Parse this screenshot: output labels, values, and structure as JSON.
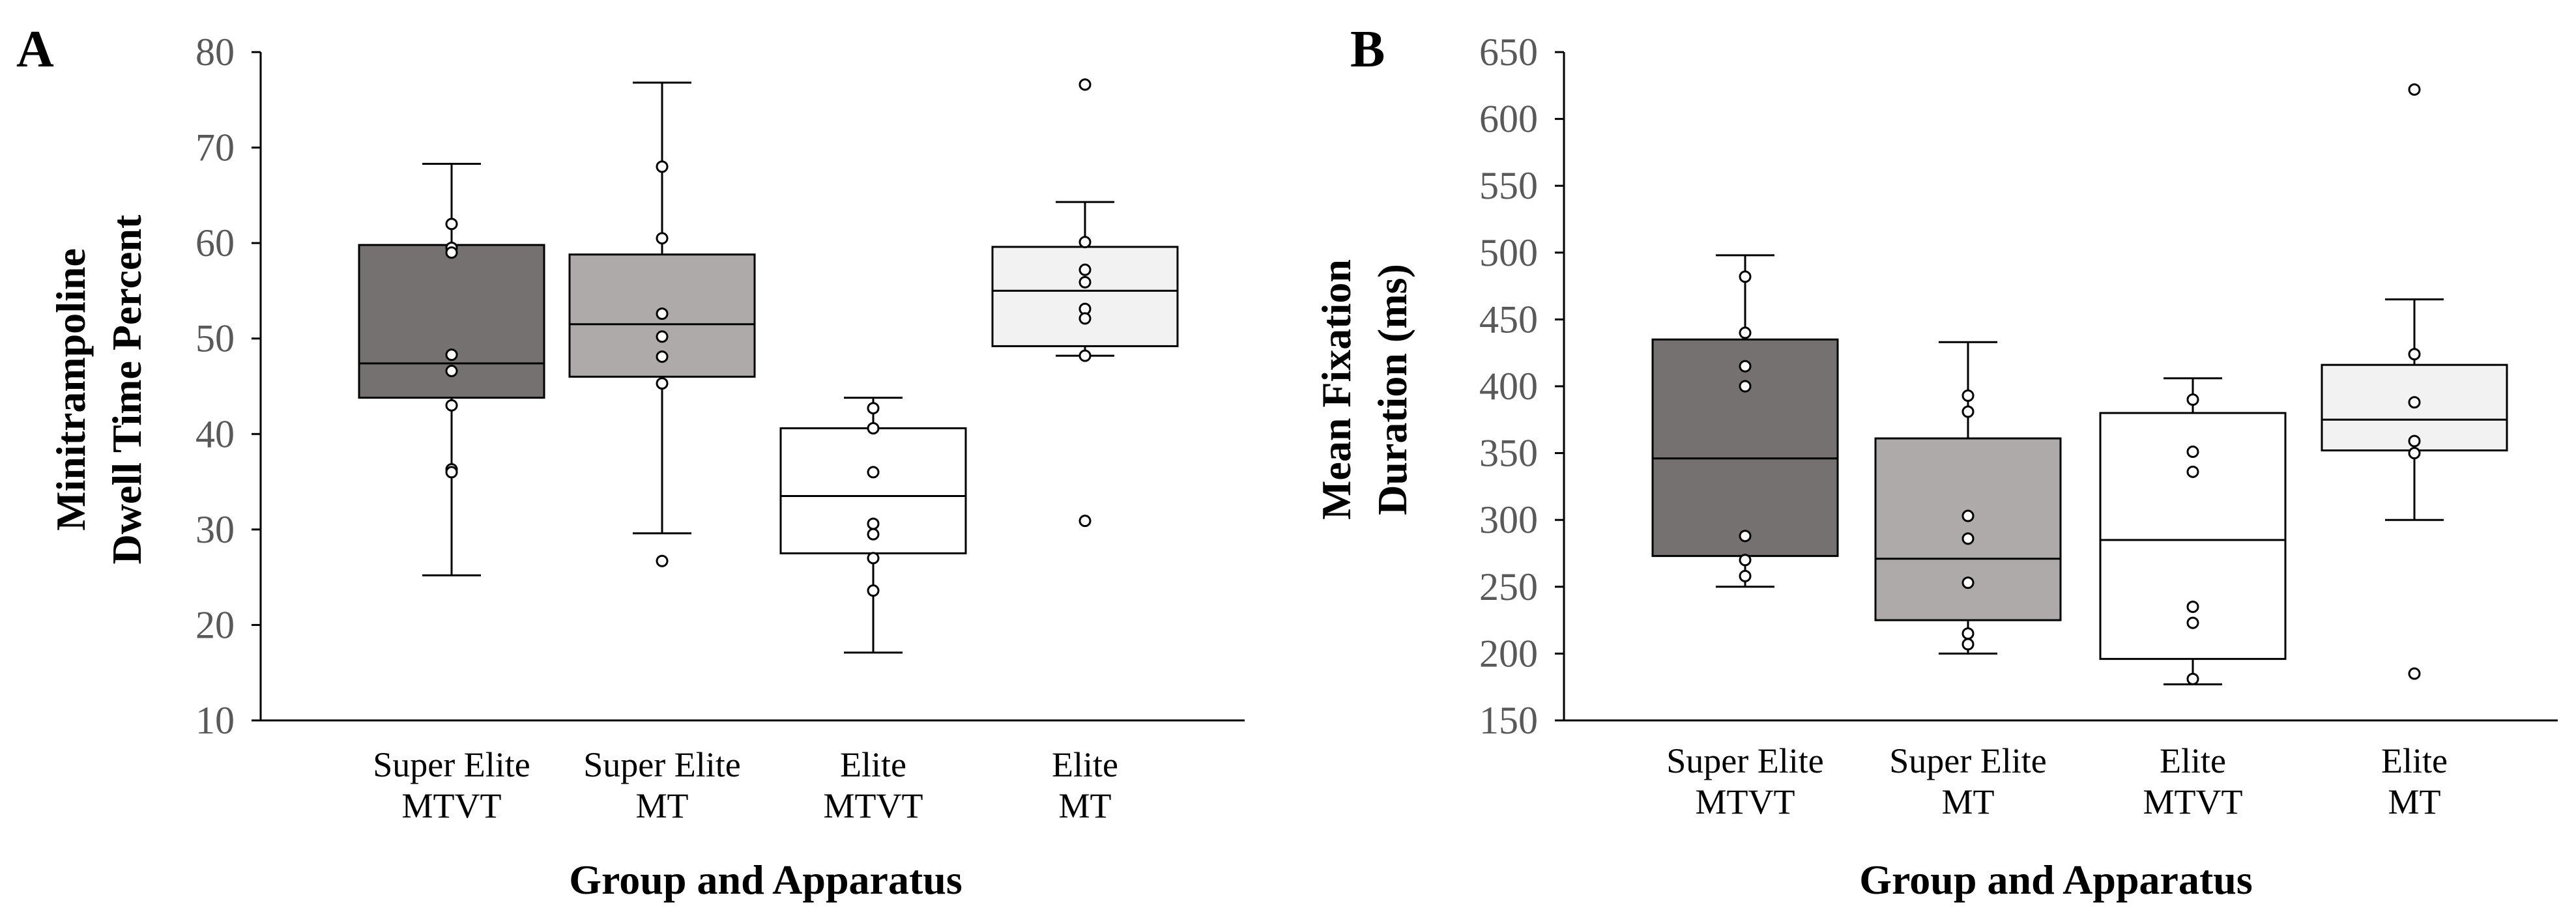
{
  "chart_data": [
    {
      "type": "box",
      "panel_label": "A",
      "title": "",
      "ylabel_lines": [
        "Minitrampoline",
        "Dwell Time Percent"
      ],
      "xlabel": "Group and Apparatus",
      "ylim": [
        10,
        80
      ],
      "yticks": [
        "10",
        "20",
        "30",
        "40",
        "50",
        "60",
        "70",
        "80"
      ],
      "ytick_values": [
        10,
        20,
        30,
        40,
        50,
        60,
        70,
        80
      ],
      "grid": false,
      "boxes": [
        {
          "label_lines": [
            "Super Elite",
            "MTVT"
          ],
          "fill": "#767171",
          "whisker_low": 25.2,
          "q1": 43.8,
          "median": 47.4,
          "q3": 59.8,
          "whisker_high": 68.3,
          "points": [
            62.0,
            59.5,
            59.0,
            48.3,
            46.6,
            43.0,
            36.3,
            36.0
          ]
        },
        {
          "label_lines": [
            "Super Elite",
            "MT"
          ],
          "fill": "#aeaaaa",
          "whisker_low": 29.6,
          "q1": 46.0,
          "median": 51.5,
          "q3": 58.8,
          "whisker_high": 76.8,
          "points": [
            68.0,
            60.5,
            52.6,
            50.2,
            48.1,
            45.3,
            26.7
          ]
        },
        {
          "label_lines": [
            "Elite",
            "MTVT"
          ],
          "fill": "#ffffff",
          "whisker_low": 17.1,
          "q1": 27.5,
          "median": 33.5,
          "q3": 40.6,
          "whisker_high": 43.8,
          "points": [
            42.7,
            40.6,
            36.0,
            30.6,
            29.5,
            27.0,
            23.6
          ]
        },
        {
          "label_lines": [
            "Elite",
            "MT"
          ],
          "fill": "#f2f2f2",
          "whisker_low": 48.2,
          "q1": 49.2,
          "median": 55.0,
          "q3": 59.6,
          "whisker_high": 64.3,
          "points": [
            76.6,
            60.1,
            57.2,
            55.9,
            53.1,
            52.1,
            48.2,
            30.9
          ]
        }
      ]
    },
    {
      "type": "box",
      "panel_label": "B",
      "title": "",
      "ylabel_lines": [
        "Mean Fixation",
        "Duration (ms)"
      ],
      "xlabel": "Group and Apparatus",
      "ylim": [
        150,
        650
      ],
      "yticks": [
        "150",
        "200",
        "250",
        "300",
        "350",
        "400",
        "450",
        "500",
        "550",
        "600",
        "650"
      ],
      "ytick_values": [
        150,
        200,
        250,
        300,
        350,
        400,
        450,
        500,
        550,
        600,
        650
      ],
      "grid": false,
      "boxes": [
        {
          "label_lines": [
            "Super Elite",
            "MTVT"
          ],
          "fill": "#767171",
          "whisker_low": 250,
          "q1": 273,
          "median": 346,
          "q3": 435,
          "whisker_high": 498,
          "points": [
            482,
            440,
            415,
            400,
            288,
            270,
            258
          ]
        },
        {
          "label_lines": [
            "Super Elite",
            "MT"
          ],
          "fill": "#aeaaaa",
          "whisker_low": 200,
          "q1": 225,
          "median": 271,
          "q3": 361,
          "whisker_high": 433,
          "points": [
            393,
            381,
            303,
            286,
            253,
            215,
            207
          ]
        },
        {
          "label_lines": [
            "Elite",
            "MTVT"
          ],
          "fill": "#ffffff",
          "whisker_low": 177,
          "q1": 196,
          "median": 285,
          "q3": 380,
          "whisker_high": 406,
          "points": [
            390,
            351,
            336,
            235,
            223,
            181
          ]
        },
        {
          "label_lines": [
            "Elite",
            "MT"
          ],
          "fill": "#f2f2f2",
          "whisker_low": 300,
          "q1": 352,
          "median": 375,
          "q3": 416,
          "whisker_high": 465,
          "points": [
            622,
            424,
            388,
            359,
            350,
            185
          ]
        }
      ]
    }
  ]
}
